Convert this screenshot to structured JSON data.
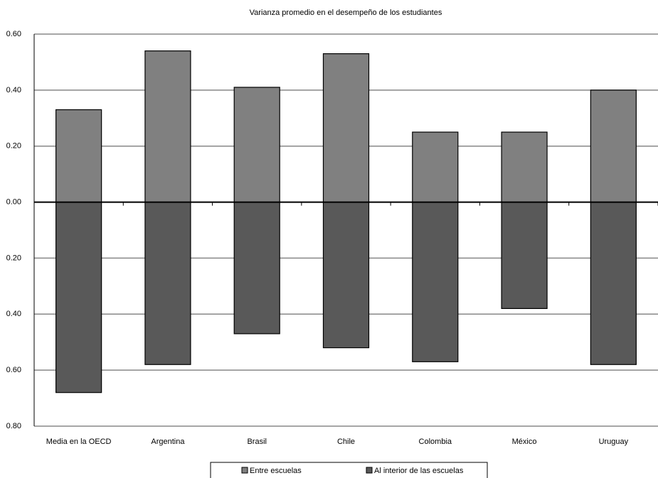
{
  "chart_data": {
    "type": "bar",
    "title": "Varianza promedio en el desempeño de los estudiantes",
    "categories": [
      "Media en la OECD",
      "Argentina",
      "Brasil",
      "Chile",
      "Colombia",
      "México",
      "Uruguay"
    ],
    "series": [
      {
        "name": "Entre escuelas",
        "color": "#808080",
        "values": [
          0.33,
          0.54,
          0.41,
          0.53,
          0.25,
          0.25,
          0.4
        ]
      },
      {
        "name": "Al interior de las escuelas",
        "color": "#595959",
        "values": [
          -0.68,
          -0.58,
          -0.47,
          -0.52,
          -0.57,
          -0.38,
          -0.58
        ]
      }
    ],
    "ylim": [
      -0.8,
      0.6
    ],
    "yticks": [
      {
        "value": -0.8,
        "label": "0.80"
      },
      {
        "value": -0.6,
        "label": "0.60"
      },
      {
        "value": -0.4,
        "label": "0.40"
      },
      {
        "value": -0.2,
        "label": "0.20"
      },
      {
        "value": 0,
        "label": "0.00"
      },
      {
        "value": 0.2,
        "label": "0.20"
      },
      {
        "value": 0.4,
        "label": "0.40"
      },
      {
        "value": 0.6,
        "label": "0.60"
      }
    ],
    "grid": true
  }
}
